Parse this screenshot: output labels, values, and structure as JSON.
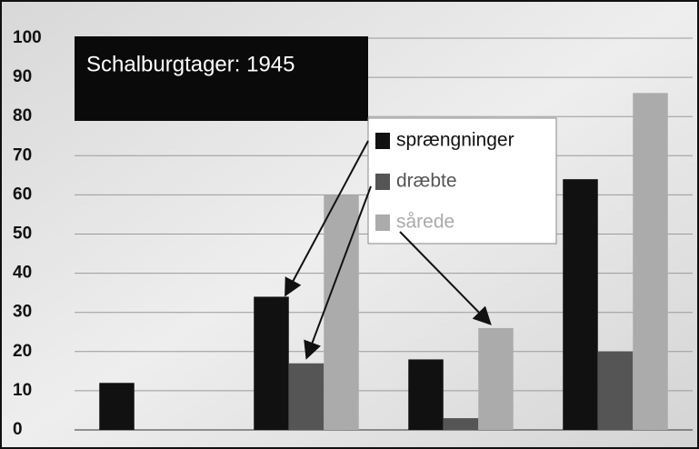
{
  "chart_data": {
    "type": "bar",
    "title": "Schalburgtager: 1945",
    "categories": [
      null,
      null,
      null,
      null
    ],
    "series": [
      {
        "name": "sprængninger",
        "color": "#111111",
        "values": [
          12,
          34,
          18,
          64
        ]
      },
      {
        "name": "dræbte",
        "color": "#555555",
        "values": [
          0,
          17,
          3,
          20
        ]
      },
      {
        "name": "sårede",
        "color": "#ababab",
        "values": [
          0,
          60,
          26,
          86
        ]
      }
    ],
    "ylim": [
      0,
      100
    ],
    "yticks": [
      0,
      10,
      20,
      30,
      40,
      50,
      60,
      70,
      80,
      90,
      100
    ],
    "grid": true
  }
}
